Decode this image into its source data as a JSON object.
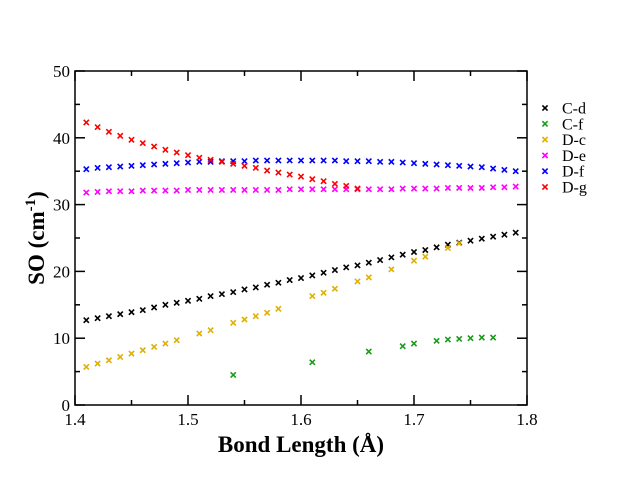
{
  "chart_data": {
    "type": "scatter",
    "title": "",
    "xlabel": "Bond Length (Å)",
    "ylabel": {
      "base": "SO (cm",
      "sup": "-1",
      "close": ")"
    },
    "xlim": [
      1.4,
      1.8
    ],
    "ylim": [
      0,
      50
    ],
    "xticks": [
      1.4,
      1.5,
      1.6,
      1.7,
      1.8
    ],
    "xtick_labels": [
      "1.4",
      "1.5",
      "1.6",
      "1.7",
      "1.8"
    ],
    "yticks": [
      0,
      10,
      20,
      30,
      40,
      50
    ],
    "ytick_labels": [
      "0",
      "10",
      "20",
      "30",
      "40",
      "50"
    ],
    "grid": false,
    "legend_position": "right",
    "marker": "x",
    "series": [
      {
        "name": "C-d",
        "color": "#000000",
        "x": [
          1.41,
          1.42,
          1.43,
          1.44,
          1.45,
          1.46,
          1.47,
          1.48,
          1.49,
          1.5,
          1.51,
          1.52,
          1.53,
          1.54,
          1.55,
          1.56,
          1.57,
          1.58,
          1.59,
          1.6,
          1.61,
          1.62,
          1.63,
          1.64,
          1.65,
          1.66,
          1.67,
          1.68,
          1.69,
          1.7,
          1.71,
          1.72,
          1.73,
          1.74,
          1.75,
          1.76,
          1.77,
          1.78,
          1.79
        ],
        "y": [
          12.7,
          13.0,
          13.3,
          13.6,
          13.9,
          14.2,
          14.6,
          15.0,
          15.3,
          15.6,
          15.9,
          16.3,
          16.6,
          16.9,
          17.3,
          17.6,
          18.0,
          18.3,
          18.7,
          19.0,
          19.4,
          19.8,
          20.2,
          20.6,
          20.9,
          21.3,
          21.7,
          22.1,
          22.5,
          22.9,
          23.2,
          23.6,
          24.0,
          24.3,
          24.6,
          24.9,
          25.2,
          25.5,
          25.8
        ]
      },
      {
        "name": "C-f",
        "color": "#1a9a1a",
        "x": [
          1.54,
          1.61,
          1.66,
          1.69,
          1.7,
          1.72,
          1.73,
          1.74,
          1.75,
          1.76,
          1.77
        ],
        "y": [
          4.5,
          6.4,
          8.0,
          8.8,
          9.2,
          9.6,
          9.8,
          9.9,
          10.0,
          10.1,
          10.1
        ]
      },
      {
        "name": "D-c",
        "color": "#e0b000",
        "x": [
          1.41,
          1.42,
          1.43,
          1.44,
          1.45,
          1.46,
          1.47,
          1.48,
          1.49,
          1.51,
          1.52,
          1.54,
          1.55,
          1.56,
          1.57,
          1.58,
          1.61,
          1.62,
          1.63,
          1.65,
          1.66,
          1.68,
          1.7,
          1.71,
          1.73,
          1.74
        ],
        "y": [
          5.7,
          6.2,
          6.7,
          7.2,
          7.7,
          8.2,
          8.7,
          9.2,
          9.7,
          10.7,
          11.2,
          12.3,
          12.8,
          13.3,
          13.8,
          14.4,
          16.3,
          16.8,
          17.4,
          18.5,
          19.1,
          20.3,
          21.6,
          22.2,
          23.5,
          24.2
        ]
      },
      {
        "name": "D-e",
        "color": "#ff00ff",
        "x": [
          1.41,
          1.42,
          1.43,
          1.44,
          1.45,
          1.46,
          1.47,
          1.48,
          1.49,
          1.5,
          1.51,
          1.52,
          1.53,
          1.54,
          1.55,
          1.56,
          1.57,
          1.58,
          1.59,
          1.6,
          1.61,
          1.62,
          1.63,
          1.64,
          1.65,
          1.66,
          1.67,
          1.68,
          1.69,
          1.7,
          1.71,
          1.72,
          1.73,
          1.74,
          1.75,
          1.76,
          1.77,
          1.78,
          1.79
        ],
        "y": [
          31.8,
          31.9,
          32.0,
          32.0,
          32.0,
          32.1,
          32.1,
          32.1,
          32.1,
          32.2,
          32.2,
          32.2,
          32.2,
          32.2,
          32.2,
          32.2,
          32.2,
          32.2,
          32.3,
          32.3,
          32.3,
          32.3,
          32.3,
          32.3,
          32.3,
          32.3,
          32.3,
          32.3,
          32.4,
          32.4,
          32.4,
          32.4,
          32.5,
          32.5,
          32.5,
          32.5,
          32.6,
          32.6,
          32.7
        ]
      },
      {
        "name": "D-f",
        "color": "#0000ff",
        "x": [
          1.41,
          1.42,
          1.43,
          1.44,
          1.45,
          1.46,
          1.47,
          1.48,
          1.49,
          1.5,
          1.51,
          1.52,
          1.53,
          1.54,
          1.55,
          1.56,
          1.57,
          1.58,
          1.59,
          1.6,
          1.61,
          1.62,
          1.63,
          1.64,
          1.65,
          1.66,
          1.67,
          1.68,
          1.69,
          1.7,
          1.71,
          1.72,
          1.73,
          1.74,
          1.75,
          1.76,
          1.77,
          1.78,
          1.79
        ],
        "y": [
          35.3,
          35.5,
          35.6,
          35.7,
          35.8,
          35.9,
          36.0,
          36.1,
          36.2,
          36.3,
          36.4,
          36.4,
          36.5,
          36.5,
          36.5,
          36.6,
          36.6,
          36.6,
          36.6,
          36.6,
          36.6,
          36.6,
          36.6,
          36.5,
          36.5,
          36.5,
          36.4,
          36.4,
          36.3,
          36.2,
          36.1,
          36.0,
          35.9,
          35.8,
          35.7,
          35.6,
          35.4,
          35.2,
          35.0
        ]
      },
      {
        "name": "D-g",
        "color": "#ff0000",
        "x": [
          1.41,
          1.42,
          1.43,
          1.44,
          1.45,
          1.46,
          1.47,
          1.48,
          1.49,
          1.5,
          1.51,
          1.52,
          1.53,
          1.54,
          1.55,
          1.56,
          1.57,
          1.58,
          1.59,
          1.6,
          1.61,
          1.62,
          1.63,
          1.64,
          1.65
        ],
        "y": [
          42.3,
          41.6,
          40.9,
          40.3,
          39.7,
          39.2,
          38.7,
          38.2,
          37.8,
          37.4,
          37.0,
          36.7,
          36.4,
          36.1,
          35.8,
          35.5,
          35.1,
          34.8,
          34.5,
          34.2,
          33.8,
          33.5,
          33.1,
          32.8,
          32.4
        ]
      }
    ]
  }
}
